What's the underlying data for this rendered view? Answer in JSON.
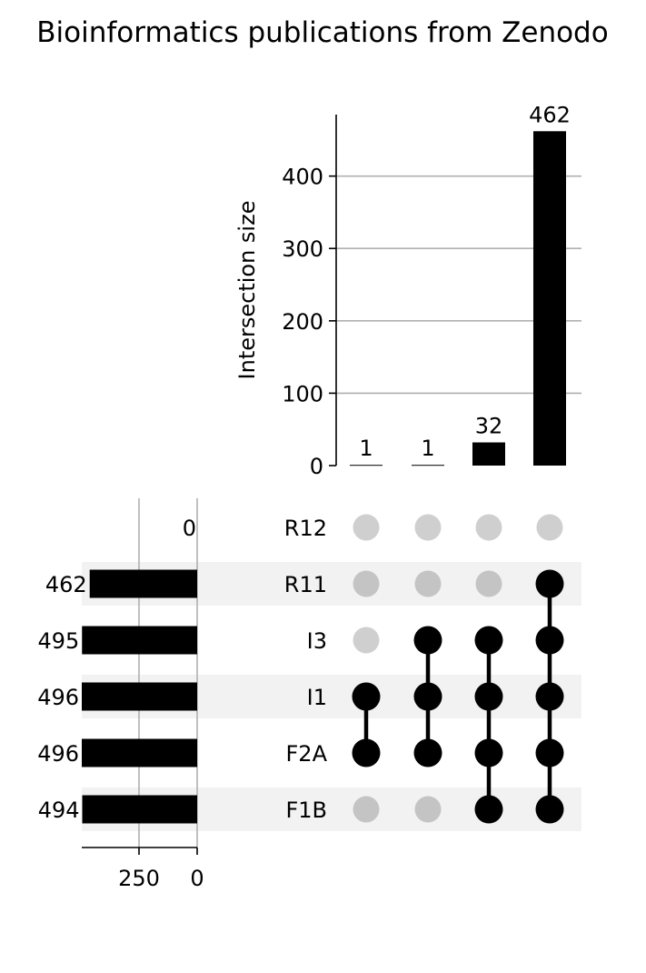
{
  "chart_data": {
    "type": "upset",
    "title": "Bioinformatics publications from Zenodo",
    "intersection_axis": {
      "label": "Intersection size",
      "ticks": [
        0,
        100,
        200,
        300,
        400
      ],
      "ylim": [
        0,
        485
      ],
      "grid": true
    },
    "set_size_axis": {
      "ticks": [
        250,
        0
      ],
      "xlim": [
        0,
        496
      ],
      "grid": true
    },
    "sets": [
      {
        "name": "R12",
        "size": 0
      },
      {
        "name": "R11",
        "size": 462
      },
      {
        "name": "I3",
        "size": 495
      },
      {
        "name": "I1",
        "size": 496
      },
      {
        "name": "F2A",
        "size": 496
      },
      {
        "name": "F1B",
        "size": 494
      }
    ],
    "intersections": [
      {
        "sets": [
          "I1",
          "F2A"
        ],
        "size": 1
      },
      {
        "sets": [
          "I3",
          "I1",
          "F2A"
        ],
        "size": 1
      },
      {
        "sets": [
          "I3",
          "I1",
          "F2A",
          "F1B"
        ],
        "size": 32
      },
      {
        "sets": [
          "R11",
          "I3",
          "I1",
          "F2A",
          "F1B"
        ],
        "size": 462
      }
    ],
    "colors": {
      "bar": "#000000",
      "active_dot": "#000000",
      "inactive_dot": "#cfcfcf",
      "inactive_dot_shaded": "#c4c4c4",
      "row_shade": "#f2f2f2",
      "grid": "#b0b0b0"
    }
  }
}
